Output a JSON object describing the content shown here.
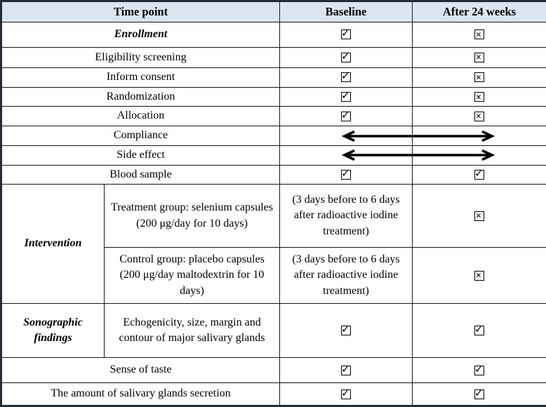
{
  "table": {
    "header": {
      "time_point": "Time point",
      "baseline": "Baseline",
      "after": "After 24 weeks"
    },
    "simple_rows": [
      {
        "label": "Enrollment",
        "emphasis": "bold-italic",
        "baseline_mark": "checked",
        "after_mark": "crossed"
      },
      {
        "label": "Eligibility screening",
        "baseline_mark": "checked",
        "after_mark": "crossed"
      },
      {
        "label": "Inform consent",
        "baseline_mark": "checked",
        "after_mark": "crossed"
      },
      {
        "label": "Randomization",
        "baseline_mark": "checked",
        "after_mark": "crossed"
      },
      {
        "label": "Allocation",
        "baseline_mark": "checked",
        "after_mark": "crossed"
      },
      {
        "label": "Compliance",
        "baseline_mark": "arrow-span",
        "after_mark": "arrow-span"
      },
      {
        "label": "Side effect",
        "baseline_mark": "arrow-span",
        "after_mark": "arrow-span"
      },
      {
        "label": "Blood sample",
        "baseline_mark": "checked",
        "after_mark": "checked"
      },
      {
        "label": "Sense of taste",
        "baseline_mark": "checked",
        "after_mark": "checked"
      },
      {
        "label": "The amount of salivary glands secretion",
        "baseline_mark": "checked",
        "after_mark": "checked"
      }
    ],
    "intervention": {
      "label": "Intervention",
      "treatment": {
        "desc": "Treatment group: selenium capsules (200 μg/day for 10 days)",
        "baseline_text": "(3 days before to 6 days after radioactive iodine treatment)",
        "after_mark": "crossed"
      },
      "control": {
        "desc": "Control group: placebo capsules (200 μg/day maltodextrin for 10 days)",
        "baseline_text": "(3 days before to 6 days after radioactive iodine treatment)",
        "after_mark": "crossed"
      }
    },
    "sonographic": {
      "label": "Sonographic findings",
      "desc": "Echogenicity, size, margin and contour of major salivary glands",
      "baseline_mark": "checked",
      "after_mark": "checked"
    },
    "marks_legend": {
      "checked": "checkbox-checked-icon (box with check mark)",
      "crossed": "checkbox-crossed-icon (box with X mark)",
      "arrow-span": "double-arrow-icon spanning Baseline and After 24 weeks columns"
    }
  },
  "colors": {
    "header_bg": "#dbe5f1",
    "outer_border": "#222b38",
    "grid_line": "#161616",
    "text": "#000000",
    "arrow": "#000000"
  }
}
